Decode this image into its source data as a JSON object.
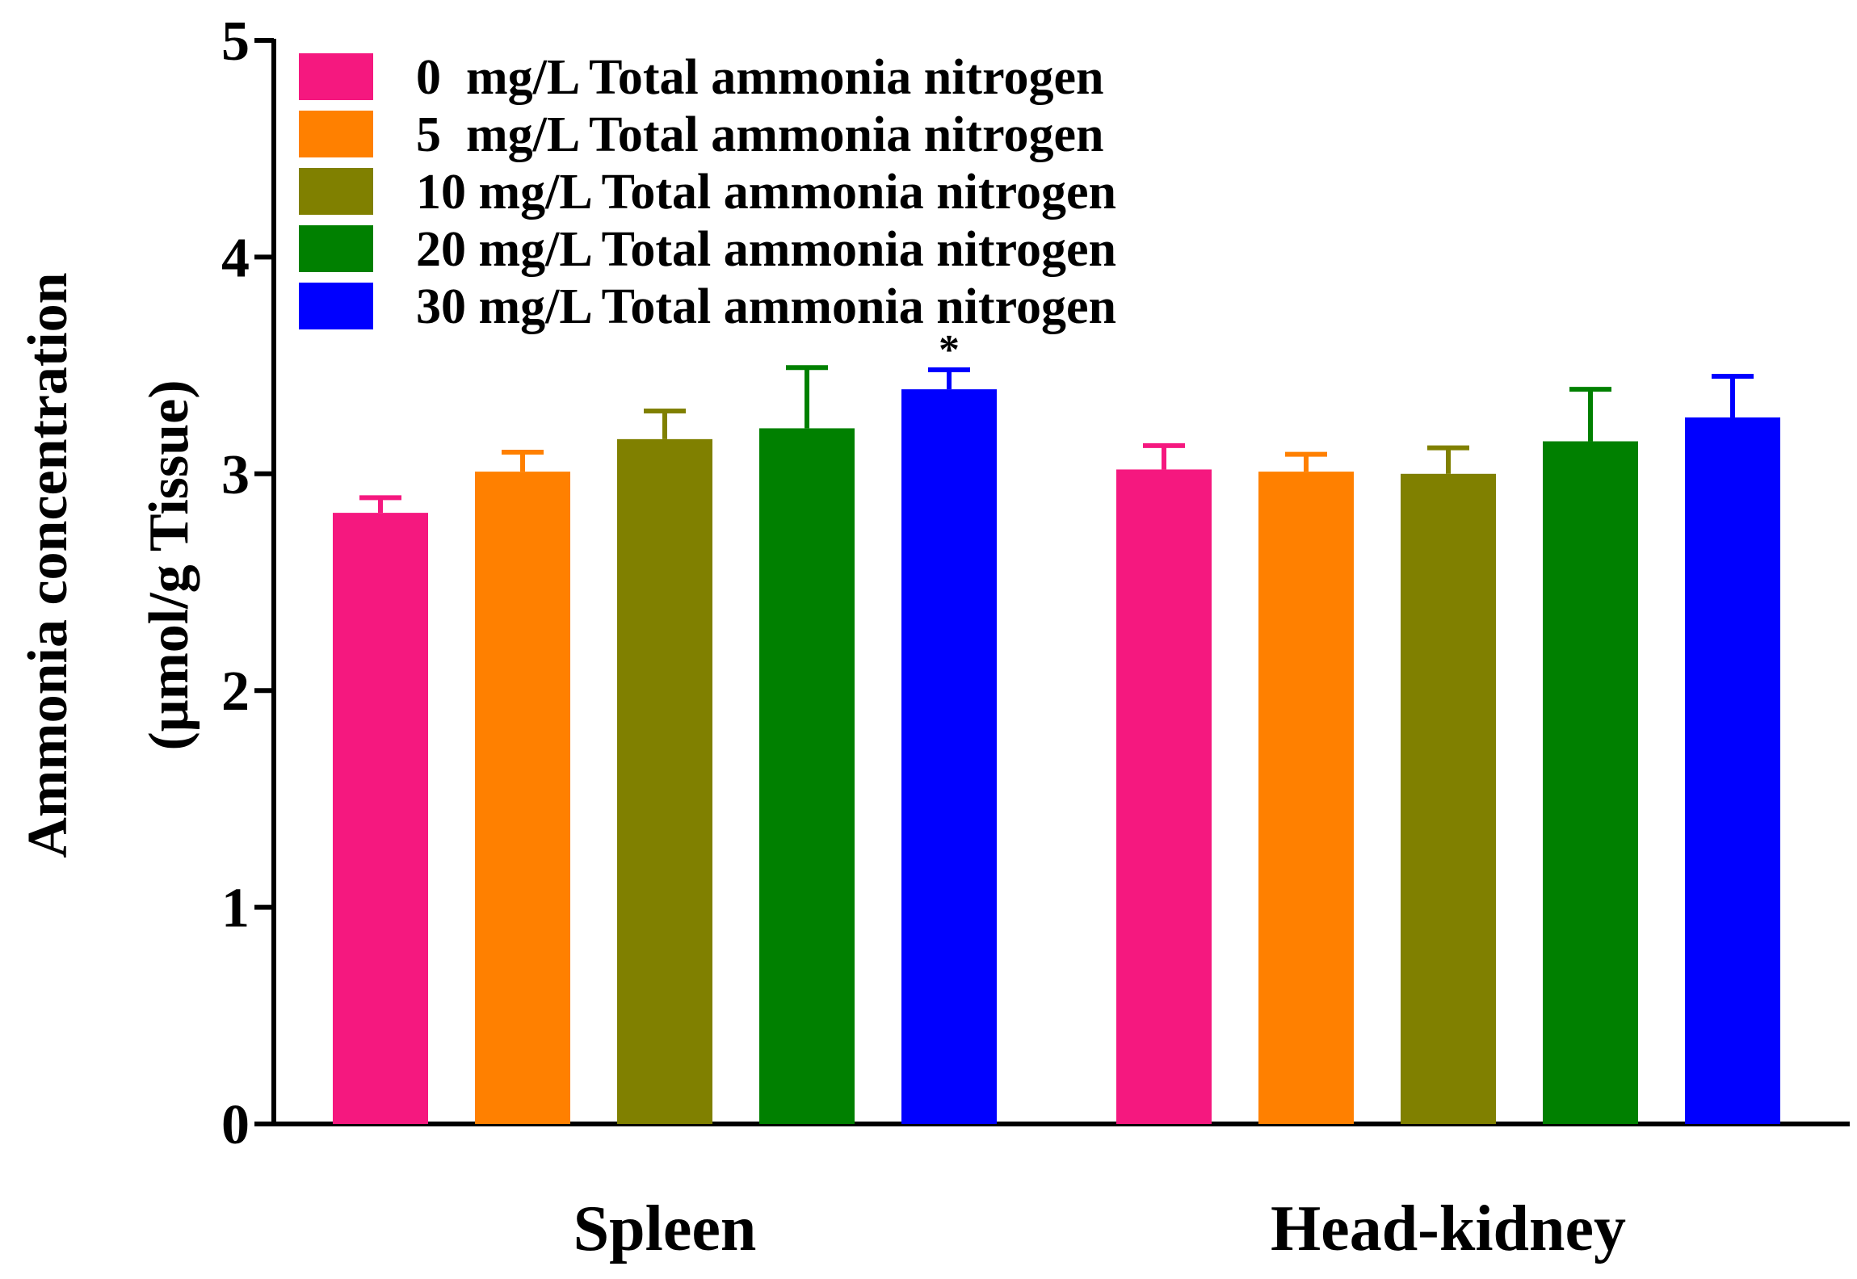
{
  "chart_data": {
    "type": "bar",
    "title": "",
    "xlabel": "",
    "ylabel_line1": "Ammonia concentration",
    "ylabel_line2": "(μmol/g Tissue)",
    "ylim": [
      0,
      5
    ],
    "yticks": [
      "0",
      "1",
      "2",
      "3",
      "4",
      "5"
    ],
    "categories": [
      "Spleen",
      "Head-kidney"
    ],
    "legend_position": "top-left",
    "grid": false,
    "series": [
      {
        "name": "0  mg/L Total ammonia nitrogen",
        "color": "#F5187F",
        "values": [
          2.82,
          3.02
        ],
        "errors": [
          0.07,
          0.11
        ]
      },
      {
        "name": "5  mg/L Total ammonia nitrogen",
        "color": "#FF8000",
        "values": [
          3.01,
          3.01
        ],
        "errors": [
          0.09,
          0.08
        ]
      },
      {
        "name": "10 mg/L Total ammonia nitrogen",
        "color": "#808000",
        "values": [
          3.16,
          3.0
        ],
        "errors": [
          0.13,
          0.12
        ]
      },
      {
        "name": "20 mg/L Total ammonia nitrogen",
        "color": "#008000",
        "values": [
          3.21,
          3.15
        ],
        "errors": [
          0.28,
          0.24
        ]
      },
      {
        "name": "30 mg/L Total ammonia nitrogen",
        "color": "#0000FF",
        "values": [
          3.39,
          3.26
        ],
        "errors": [
          0.09,
          0.19
        ]
      }
    ],
    "annotations": [
      {
        "text": "*",
        "series_index": 4,
        "category_index": 0
      }
    ]
  }
}
